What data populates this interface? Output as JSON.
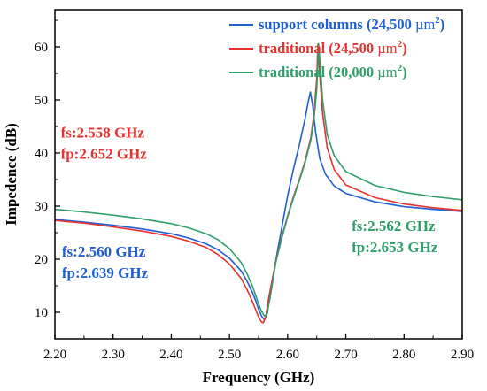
{
  "chart_data": {
    "type": "line",
    "xlabel": "Frequency (GHz)",
    "ylabel": "Impedence (dB)",
    "xlim": [
      2.2,
      2.9
    ],
    "ylim": [
      5,
      67
    ],
    "x_ticks": [
      "2.20",
      "2.30",
      "2.40",
      "2.50",
      "2.60",
      "2.70",
      "2.80",
      "2.90"
    ],
    "x_tick_values": [
      2.2,
      2.3,
      2.4,
      2.5,
      2.6,
      2.7,
      2.8,
      2.9
    ],
    "y_ticks": [
      "10",
      "20",
      "30",
      "40",
      "50",
      "60"
    ],
    "y_tick_values": [
      10,
      20,
      30,
      40,
      50,
      60
    ],
    "legend_position": "top-right",
    "series": [
      {
        "name": "support columns (24,500 µm²)",
        "legend": {
          "main": "support columns (24,500 ",
          "unit": "µm",
          "sup": "2",
          "close": ")"
        },
        "color": "#1f5fd6",
        "x": [
          2.2,
          2.25,
          2.3,
          2.35,
          2.4,
          2.43,
          2.46,
          2.48,
          2.5,
          2.52,
          2.53,
          2.54,
          2.545,
          2.55,
          2.555,
          2.56,
          2.565,
          2.57,
          2.58,
          2.59,
          2.6,
          2.61,
          2.62,
          2.63,
          2.635,
          2.639,
          2.643,
          2.648,
          2.655,
          2.665,
          2.68,
          2.7,
          2.75,
          2.8,
          2.85,
          2.9
        ],
        "y": [
          27.5,
          27.0,
          26.4,
          25.7,
          24.8,
          24.0,
          22.9,
          21.8,
          20.2,
          17.8,
          15.9,
          13.6,
          12.2,
          10.6,
          9.3,
          8.6,
          9.8,
          13.6,
          20.0,
          26.0,
          32.0,
          37.0,
          41.5,
          46.5,
          49.5,
          51.5,
          49.0,
          44.0,
          39.0,
          36.0,
          33.8,
          32.4,
          30.8,
          29.9,
          29.4,
          29.0
        ]
      },
      {
        "name": "traditional (24,500 µm²)",
        "legend": {
          "main": "traditional (24,500 ",
          "unit": "µm",
          "sup": "2",
          "close": ")"
        },
        "color": "#e8312f",
        "x": [
          2.2,
          2.25,
          2.3,
          2.35,
          2.4,
          2.43,
          2.46,
          2.48,
          2.5,
          2.52,
          2.53,
          2.54,
          2.545,
          2.55,
          2.555,
          2.558,
          2.562,
          2.568,
          2.58,
          2.59,
          2.6,
          2.61,
          2.62,
          2.63,
          2.64,
          2.645,
          2.65,
          2.652,
          2.655,
          2.66,
          2.668,
          2.68,
          2.7,
          2.75,
          2.8,
          2.85,
          2.9
        ],
        "y": [
          27.3,
          26.8,
          26.1,
          25.3,
          24.3,
          23.4,
          22.2,
          20.9,
          19.1,
          16.4,
          14.3,
          11.9,
          10.5,
          9.1,
          8.2,
          8.0,
          9.0,
          13.0,
          19.8,
          24.3,
          28.2,
          31.8,
          35.0,
          38.5,
          43.0,
          47.0,
          54.0,
          60.5,
          55.0,
          47.5,
          41.0,
          36.9,
          34.0,
          31.6,
          30.4,
          29.7,
          29.2
        ]
      },
      {
        "name": "traditional (20,000 µm²)",
        "legend": {
          "main": "traditional (20,000 ",
          "unit": "µm",
          "sup": "2",
          "close": ")"
        },
        "color": "#2fa06a",
        "x": [
          2.2,
          2.25,
          2.3,
          2.35,
          2.4,
          2.43,
          2.46,
          2.48,
          2.5,
          2.52,
          2.53,
          2.54,
          2.545,
          2.55,
          2.555,
          2.56,
          2.564,
          2.57,
          2.58,
          2.59,
          2.6,
          2.61,
          2.62,
          2.63,
          2.64,
          2.645,
          2.65,
          2.653,
          2.656,
          2.66,
          2.668,
          2.68,
          2.7,
          2.75,
          2.8,
          2.85,
          2.9
        ],
        "y": [
          29.4,
          28.9,
          28.3,
          27.6,
          26.7,
          25.9,
          24.8,
          23.7,
          22.0,
          19.4,
          17.3,
          14.8,
          13.2,
          11.6,
          10.2,
          9.3,
          9.5,
          12.8,
          19.6,
          24.0,
          28.0,
          31.5,
          34.8,
          38.2,
          42.5,
          46.0,
          52.0,
          60.6,
          56.5,
          50.0,
          43.5,
          39.5,
          36.5,
          33.9,
          32.6,
          31.8,
          31.2
        ]
      }
    ],
    "annotations": [
      {
        "text": "fs:2.558 GHz",
        "color": "#e8312f",
        "x": 2.21,
        "y": 42.9
      },
      {
        "text": "fp:2.652 GHz",
        "color": "#e8312f",
        "x": 2.21,
        "y": 38.9
      },
      {
        "text": "fs:2.560 GHz",
        "color": "#1f5fd6",
        "x": 2.212,
        "y": 20.5
      },
      {
        "text": "fp:2.639 GHz",
        "color": "#1f5fd6",
        "x": 2.212,
        "y": 16.5
      },
      {
        "text": "fs:2.562 GHz",
        "color": "#2fa06a",
        "x": 2.71,
        "y": 25.3
      },
      {
        "text": "fp:2.653 GHz",
        "color": "#2fa06a",
        "x": 2.71,
        "y": 21.3
      }
    ]
  }
}
